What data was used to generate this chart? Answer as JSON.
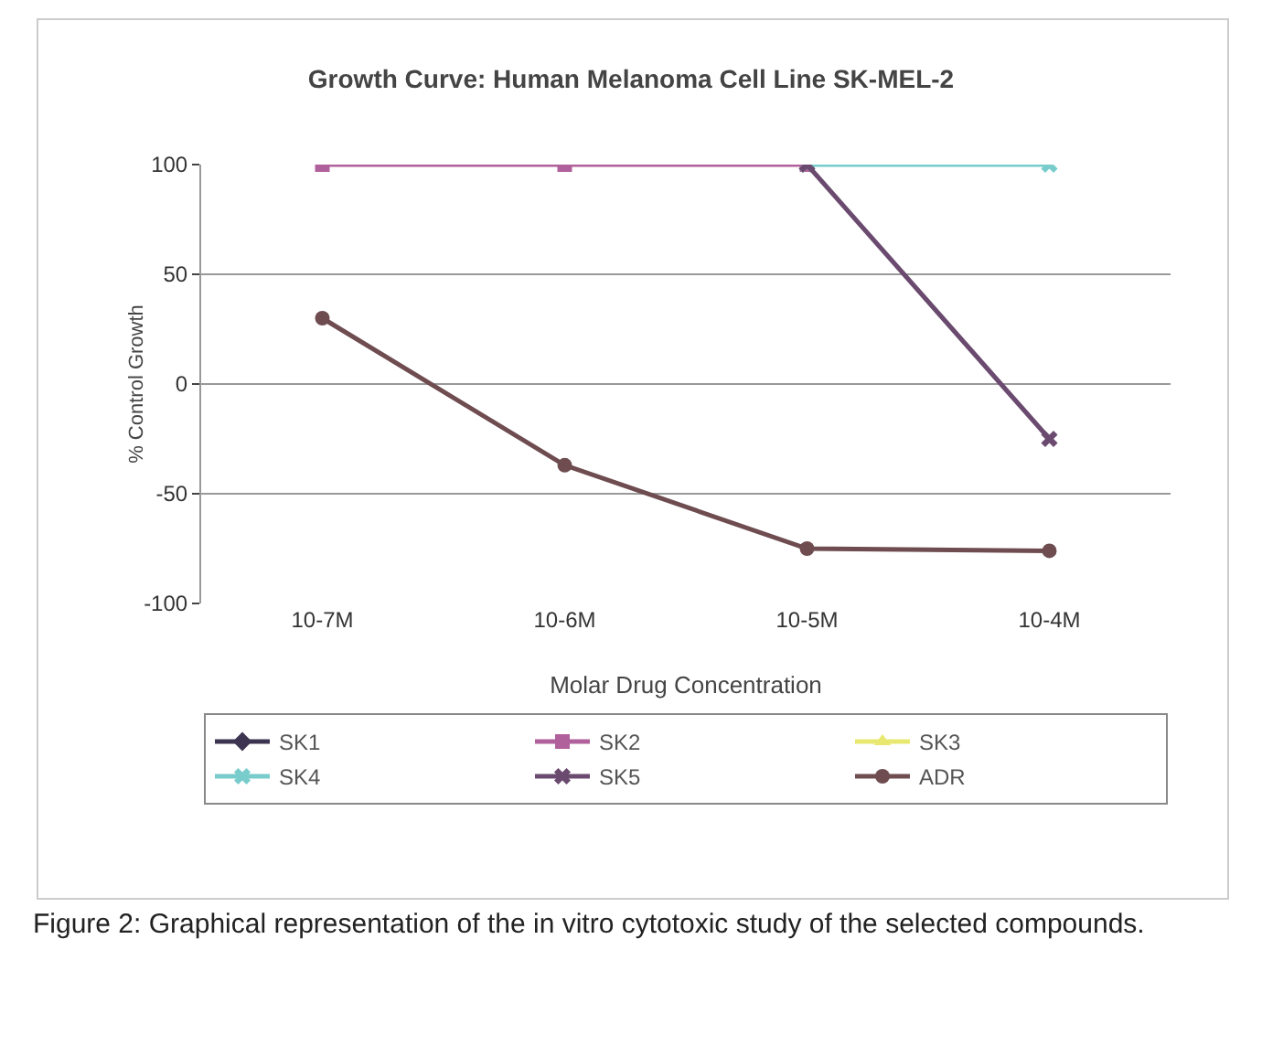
{
  "chart_data": {
    "type": "line",
    "title": "Growth Curve: Human Melanoma Cell Line SK-MEL-2",
    "xlabel": "Molar Drug Concentration",
    "ylabel": "% Control Growth",
    "categories": [
      "10-7M",
      "10-6M",
      "10-5M",
      "10-4M"
    ],
    "series": [
      {
        "name": "SK1",
        "color": "#3c3450",
        "marker": "diamond",
        "values": [
          null,
          null,
          null,
          null
        ]
      },
      {
        "name": "SK2",
        "color": "#b0609a",
        "marker": "square",
        "values": [
          100,
          100,
          100,
          null
        ]
      },
      {
        "name": "SK3",
        "color": "#e8e870",
        "marker": "triangle",
        "values": [
          null,
          null,
          null,
          null
        ]
      },
      {
        "name": "SK4",
        "color": "#78cccc",
        "marker": "cross",
        "values": [
          null,
          null,
          100,
          100
        ]
      },
      {
        "name": "SK5",
        "color": "#6a4a6e",
        "marker": "cross",
        "values": [
          null,
          null,
          100,
          -25
        ]
      },
      {
        "name": "ADR",
        "color": "#6e4c50",
        "marker": "circle",
        "values": [
          30,
          -37,
          -75,
          -76
        ]
      }
    ],
    "ylim": [
      -100,
      100
    ],
    "yticks": [
      -100,
      -50,
      0,
      50,
      100
    ],
    "grid": "y",
    "legend": "bottom",
    "annotations": [
      "Figure 2: Graphical representation of the in vitro cytotoxic study of the selected compounds."
    ]
  }
}
